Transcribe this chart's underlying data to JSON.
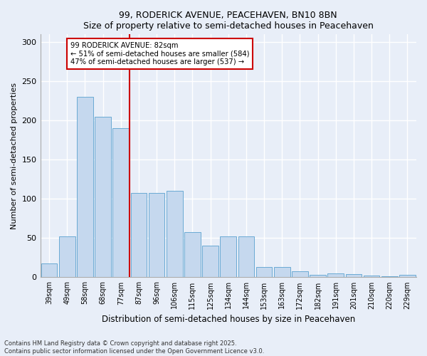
{
  "title": "99, RODERICK AVENUE, PEACEHAVEN, BN10 8BN",
  "subtitle": "Size of property relative to semi-detached houses in Peacehaven",
  "xlabel": "Distribution of semi-detached houses by size in Peacehaven",
  "ylabel": "Number of semi-detached properties",
  "categories": [
    "39sqm",
    "49sqm",
    "58sqm",
    "68sqm",
    "77sqm",
    "87sqm",
    "96sqm",
    "106sqm",
    "115sqm",
    "125sqm",
    "134sqm",
    "144sqm",
    "153sqm",
    "163sqm",
    "172sqm",
    "182sqm",
    "191sqm",
    "201sqm",
    "210sqm",
    "220sqm",
    "229sqm"
  ],
  "values": [
    18,
    52,
    230,
    205,
    190,
    108,
    108,
    110,
    58,
    40,
    52,
    52,
    13,
    13,
    8,
    3,
    5,
    4,
    2,
    1,
    3
  ],
  "bar_color": "#c5d8ee",
  "bar_edge_color": "#6aaad4",
  "vline_pos": 5.0,
  "vline_color": "#cc0000",
  "annotation_text": "99 RODERICK AVENUE: 82sqm\n← 51% of semi-detached houses are smaller (584)\n47% of semi-detached houses are larger (537) →",
  "annotation_box_facecolor": "white",
  "annotation_box_edgecolor": "#cc0000",
  "ylim_max": 310,
  "yticks": [
    0,
    50,
    100,
    150,
    200,
    250,
    300
  ],
  "footer": "Contains HM Land Registry data © Crown copyright and database right 2025.\nContains public sector information licensed under the Open Government Licence v3.0.",
  "background_color": "#e8eef8",
  "grid_color": "#ffffff",
  "spine_color": "#aaaaaa"
}
